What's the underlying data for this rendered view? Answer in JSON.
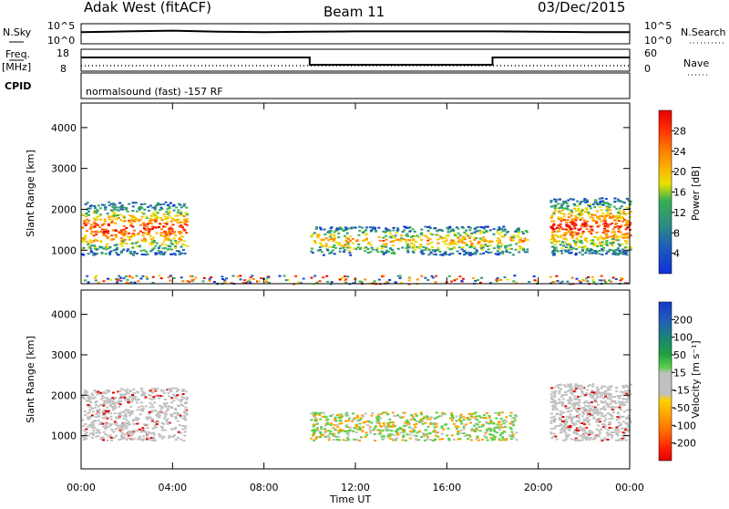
{
  "header": {
    "station": "Adak West (fitACF)",
    "beam": "Beam 11",
    "date": "03/Dec/2015"
  },
  "strip_panels": {
    "nsky": {
      "label": "N.Sky",
      "ticks": [
        "10^5",
        "10^0"
      ],
      "right_label": "N.Search",
      "right_ticks": [
        "10^5",
        "10^0"
      ]
    },
    "freq": {
      "label_line1": "Freq.",
      "label_line2": "[MHz]",
      "ticks": [
        "18",
        "8"
      ],
      "right_label": "Nave",
      "right_ticks": [
        "60",
        "0"
      ]
    },
    "cpid": {
      "label": "CPID",
      "text": "normalsound (fast) -157 RF"
    }
  },
  "chart_data": [
    {
      "type": "line",
      "title": "N.Sky / N.Search",
      "series": [
        {
          "name": "N.Sky",
          "style": "solid",
          "x": [
            0,
            2,
            4,
            6,
            8,
            10,
            12,
            14,
            16,
            18,
            20,
            22,
            24
          ],
          "values": [
            3.2,
            3.4,
            3.6,
            3.3,
            3.2,
            3.3,
            3.4,
            3.4,
            3.4,
            3.4,
            3.3,
            3.2,
            3.2
          ]
        }
      ]
    },
    {
      "type": "line",
      "title": "Freq. / Nave",
      "x_breaks": [
        0,
        10,
        18,
        24
      ],
      "series": [
        {
          "name": "Freq.",
          "units": "MHz",
          "x": [
            0,
            10,
            10,
            18,
            18,
            24
          ],
          "values": [
            14.5,
            14.5,
            10.5,
            10.5,
            14.5,
            14.5
          ]
        },
        {
          "name": "Nave",
          "style": "dotted",
          "x": [
            0,
            24
          ],
          "values": [
            12,
            12
          ]
        }
      ]
    },
    {
      "type": "heatmap",
      "ylabel": "Slant Range [km]",
      "ylim": [
        180,
        4600
      ],
      "yticks": [
        "1000",
        "2000",
        "3000",
        "4000"
      ],
      "colorbar": {
        "label": "Power [dB]",
        "ticks": [
          "4",
          "8",
          "12",
          "16",
          "20",
          "24",
          "28"
        ],
        "colors": [
          "#1230d8",
          "#1c58c0",
          "#2e8c84",
          "#38b050",
          "#e8e000",
          "#ffb000",
          "#ff8000",
          "#ff3000",
          "#e80000"
        ]
      },
      "regions": [
        {
          "t0": 0.0,
          "t1": 4.6,
          "r0": 900,
          "r1": 2200,
          "level": 0.8
        },
        {
          "t0": 10.0,
          "t1": 19.5,
          "r0": 900,
          "r1": 1600,
          "level": 0.55
        },
        {
          "t0": 20.5,
          "t1": 24.0,
          "r0": 900,
          "r1": 2300,
          "level": 0.8
        },
        {
          "t0": 0.0,
          "t1": 24.0,
          "r0": 190,
          "r1": 400,
          "level": 0.3
        }
      ]
    },
    {
      "type": "heatmap",
      "ylabel": "Slant Range [km]",
      "xlabel": "Time UT",
      "ylim": [
        180,
        4600
      ],
      "yticks": [
        "1000",
        "2000",
        "3000",
        "4000"
      ],
      "xticks": [
        "00:00",
        "04:00",
        "08:00",
        "12:00",
        "16:00",
        "20:00",
        "00:00"
      ],
      "colorbar": {
        "label": "Velocity [m s⁻¹]",
        "ticks": [
          "200",
          "100",
          "50",
          "15",
          "-15",
          "-50",
          "-100",
          "-200"
        ],
        "colors": [
          "#1838c8",
          "#2060b8",
          "#188c68",
          "#20a040",
          "#58d048",
          "#c0c0c0",
          "#ffd000",
          "#ffa000",
          "#ff6800",
          "#ff2000",
          "#e00000"
        ]
      },
      "regions": [
        {
          "t0": 0.0,
          "t1": 4.6,
          "r0": 900,
          "r1": 2200,
          "level": "ground"
        },
        {
          "t0": 10.0,
          "t1": 19.0,
          "r0": 900,
          "r1": 1600,
          "level": "mixed"
        },
        {
          "t0": 20.5,
          "t1": 24.0,
          "r0": 900,
          "r1": 2300,
          "level": "ground"
        }
      ]
    }
  ]
}
